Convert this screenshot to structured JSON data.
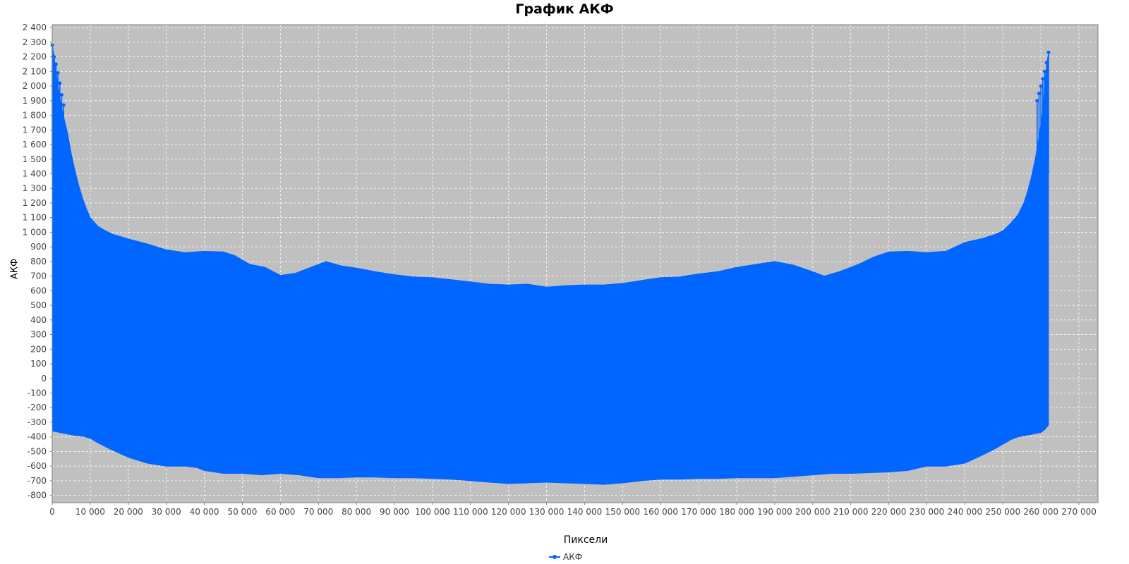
{
  "chart_data": {
    "type": "area",
    "title": "График АКФ",
    "xlabel": "Пиксели",
    "ylabel": "АКФ",
    "xlim": [
      0,
      275000
    ],
    "ylim": [
      -850,
      2420
    ],
    "x_ticks": [
      0,
      10000,
      20000,
      30000,
      40000,
      50000,
      60000,
      70000,
      80000,
      90000,
      100000,
      110000,
      120000,
      130000,
      140000,
      150000,
      160000,
      170000,
      180000,
      190000,
      200000,
      210000,
      220000,
      230000,
      240000,
      250000,
      260000,
      270000
    ],
    "x_tick_labels": [
      "0",
      "10 000",
      "20 000",
      "30 000",
      "40 000",
      "50 000",
      "60 000",
      "70 000",
      "80 000",
      "90 000",
      "100 000",
      "110 000",
      "120 000",
      "130 000",
      "140 000",
      "150 000",
      "160 000",
      "170 000",
      "180 000",
      "190 000",
      "200 000",
      "210 000",
      "220 000",
      "230 000",
      "240 000",
      "250 000",
      "260 000",
      "270 000"
    ],
    "y_ticks": [
      -800,
      -700,
      -600,
      -500,
      -400,
      -300,
      -200,
      -100,
      0,
      100,
      200,
      300,
      400,
      500,
      600,
      700,
      800,
      900,
      1000,
      1100,
      1200,
      1300,
      1400,
      1500,
      1600,
      1700,
      1800,
      1900,
      2000,
      2100,
      2200,
      2300,
      2400
    ],
    "y_tick_labels": [
      "-800",
      "-700",
      "-600",
      "-500",
      "-400",
      "-300",
      "-200",
      "-100",
      "0",
      "100",
      "200",
      "300",
      "400",
      "500",
      "600",
      "700",
      "800",
      "900",
      "1 000",
      "1 100",
      "1 200",
      "1 300",
      "1 400",
      "1 500",
      "1 600",
      "1 700",
      "1 800",
      "1 900",
      "2 000",
      "2 100",
      "2 200",
      "2 300",
      "2 400"
    ],
    "grid": true,
    "legend_position": "bottom-center",
    "background_color": "#C0C0C0",
    "series_color": "#0066FF",
    "series": [
      {
        "name": "АКФ",
        "upper_envelope": {
          "x": [
            0,
            500,
            1000,
            1500,
            2000,
            3000,
            4000,
            5000,
            6000,
            7000,
            8000,
            9000,
            10000,
            12000,
            14000,
            16000,
            18000,
            20000,
            25000,
            30000,
            35000,
            40000,
            45000,
            48000,
            52000,
            56000,
            60000,
            64000,
            68000,
            72000,
            76000,
            80000,
            85000,
            90000,
            95000,
            100000,
            105000,
            110000,
            115000,
            120000,
            125000,
            130000,
            135000,
            140000,
            145000,
            150000,
            155000,
            160000,
            165000,
            170000,
            175000,
            180000,
            185000,
            190000,
            195000,
            200000,
            203000,
            207000,
            212000,
            216000,
            220000,
            225000,
            230000,
            235000,
            240000,
            245000,
            248000,
            250000,
            252000,
            254000,
            255500,
            256500,
            257500,
            258500,
            259500,
            260500,
            261000,
            261500,
            262000
          ],
          "y": [
            2280,
            2200,
            2100,
            2000,
            1920,
            1790,
            1680,
            1540,
            1420,
            1320,
            1230,
            1160,
            1100,
            1040,
            1010,
            985,
            970,
            955,
            920,
            880,
            860,
            870,
            865,
            840,
            780,
            760,
            705,
            720,
            760,
            800,
            770,
            755,
            730,
            710,
            695,
            690,
            675,
            660,
            645,
            640,
            645,
            625,
            635,
            640,
            640,
            650,
            670,
            690,
            695,
            715,
            730,
            760,
            780,
            800,
            775,
            730,
            700,
            730,
            780,
            830,
            865,
            870,
            860,
            870,
            930,
            960,
            985,
            1010,
            1060,
            1120,
            1200,
            1280,
            1380,
            1500,
            1650,
            1830,
            2000,
            2140,
            2230
          ]
        },
        "lower_envelope": {
          "x": [
            0,
            2000,
            4000,
            6000,
            8000,
            10000,
            12000,
            15000,
            20000,
            25000,
            30000,
            35000,
            38000,
            40000,
            45000,
            50000,
            55000,
            60000,
            65000,
            70000,
            75000,
            80000,
            85000,
            90000,
            95000,
            100000,
            105000,
            110000,
            115000,
            120000,
            125000,
            130000,
            135000,
            140000,
            145000,
            150000,
            155000,
            160000,
            165000,
            170000,
            175000,
            180000,
            185000,
            190000,
            195000,
            200000,
            205000,
            210000,
            215000,
            220000,
            225000,
            230000,
            235000,
            240000,
            245000,
            248000,
            250000,
            252000,
            254000,
            256000,
            258000,
            260000,
            261000,
            262000
          ],
          "y": [
            -360,
            -370,
            -380,
            -390,
            -395,
            -410,
            -440,
            -480,
            -540,
            -580,
            -600,
            -600,
            -610,
            -630,
            -650,
            -650,
            -660,
            -650,
            -660,
            -680,
            -680,
            -675,
            -675,
            -680,
            -680,
            -685,
            -690,
            -700,
            -710,
            -720,
            -715,
            -710,
            -715,
            -720,
            -725,
            -715,
            -700,
            -690,
            -690,
            -685,
            -685,
            -680,
            -680,
            -680,
            -670,
            -660,
            -650,
            -650,
            -645,
            -640,
            -630,
            -600,
            -600,
            -580,
            -520,
            -480,
            -450,
            -420,
            -400,
            -390,
            -380,
            -370,
            -350,
            -320
          ]
        },
        "peaks_left": {
          "x": [
            0,
            500,
            1000,
            1500,
            2000,
            2500,
            3000
          ],
          "y": [
            2280,
            2200,
            2150,
            2090,
            2020,
            1940,
            1870
          ]
        },
        "peaks_right": {
          "x": [
            259000,
            259500,
            260000,
            260500,
            261000,
            261500,
            262000
          ],
          "y": [
            1900,
            1950,
            2000,
            2050,
            2100,
            2160,
            2230
          ]
        }
      }
    ]
  }
}
